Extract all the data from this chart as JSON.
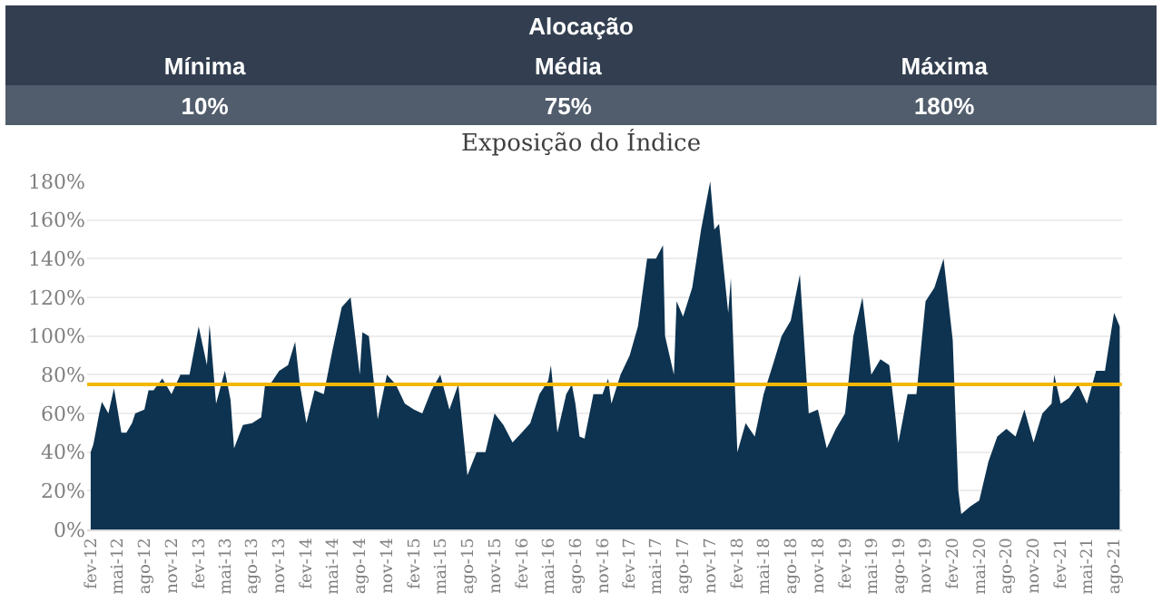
{
  "chart_data": {
    "type": "area",
    "title": "Exposição do Índice",
    "annotations": [
      "Alocação",
      "Mínima",
      "Média",
      "Máxima",
      "10%",
      "75%",
      "180%"
    ],
    "x": [
      "2012-02-01",
      "2012-02-10",
      "2012-03-01",
      "2012-03-10",
      "2012-04-01",
      "2012-04-20",
      "2012-05-01",
      "2012-05-15",
      "2012-06-01",
      "2012-06-20",
      "2012-07-01",
      "2012-08-01",
      "2012-08-15",
      "2012-09-01",
      "2012-10-01",
      "2012-11-01",
      "2012-12-01",
      "2013-01-01",
      "2013-02-01",
      "2013-03-01",
      "2013-03-10",
      "2013-04-01",
      "2013-05-01",
      "2013-05-20",
      "2013-06-01",
      "2013-07-01",
      "2013-08-01",
      "2013-09-01",
      "2013-09-15",
      "2013-10-01",
      "2013-11-01",
      "2013-12-01",
      "2013-12-25",
      "2014-01-10",
      "2014-02-01",
      "2014-03-01",
      "2014-04-01",
      "2014-05-01",
      "2014-06-01",
      "2014-07-01",
      "2014-08-01",
      "2014-08-10",
      "2014-09-01",
      "2014-10-01",
      "2014-11-01",
      "2014-12-01",
      "2015-01-01",
      "2015-02-01",
      "2015-03-01",
      "2015-04-01",
      "2015-05-01",
      "2015-06-01",
      "2015-07-01",
      "2015-08-01",
      "2015-09-01",
      "2015-10-01",
      "2015-11-01",
      "2015-12-01",
      "2016-01-01",
      "2016-02-01",
      "2016-03-01",
      "2016-04-01",
      "2016-05-01",
      "2016-05-10",
      "2016-06-01",
      "2016-07-01",
      "2016-07-20",
      "2016-08-01",
      "2016-08-15",
      "2016-09-01",
      "2016-10-01",
      "2016-11-01",
      "2016-11-20",
      "2016-12-01",
      "2017-01-01",
      "2017-02-01",
      "2017-03-01",
      "2017-04-01",
      "2017-05-01",
      "2017-05-25",
      "2017-06-01",
      "2017-07-01",
      "2017-07-10",
      "2017-08-01",
      "2017-09-01",
      "2017-10-01",
      "2017-11-01",
      "2017-11-15",
      "2017-12-01",
      "2017-12-20",
      "2018-01-01",
      "2018-01-10",
      "2018-02-01",
      "2018-03-01",
      "2018-04-01",
      "2018-05-01",
      "2018-06-01",
      "2018-07-01",
      "2018-08-01",
      "2018-09-01",
      "2018-10-01",
      "2018-11-01",
      "2018-12-01",
      "2019-01-01",
      "2019-02-01",
      "2019-03-01",
      "2019-04-01",
      "2019-05-01",
      "2019-06-01",
      "2019-07-01",
      "2019-08-01",
      "2019-09-01",
      "2019-10-01",
      "2019-11-01",
      "2019-12-01",
      "2020-01-01",
      "2020-02-01",
      "2020-02-20",
      "2020-03-01",
      "2020-04-01",
      "2020-05-01",
      "2020-06-01",
      "2020-07-01",
      "2020-08-01",
      "2020-09-01",
      "2020-10-01",
      "2020-11-01",
      "2020-12-01",
      "2021-01-01",
      "2021-01-10",
      "2021-02-01",
      "2021-03-01",
      "2021-04-01",
      "2021-05-01",
      "2021-06-01",
      "2021-07-01",
      "2021-08-01",
      "2021-08-20"
    ],
    "series": [
      {
        "color": "#0d3350",
        "values": [
          40,
          44,
          60,
          66,
          60,
          73,
          63,
          50,
          50,
          55,
          60,
          62,
          72,
          72,
          78,
          70,
          80,
          80,
          105,
          85,
          106,
          65,
          82,
          67,
          42,
          54,
          55,
          58,
          76,
          75,
          82,
          85,
          97,
          75,
          55,
          72,
          70,
          93,
          115,
          120,
          80,
          102,
          100,
          57,
          80,
          75,
          65,
          62,
          60,
          72,
          80,
          62,
          75,
          28,
          40,
          40,
          60,
          54,
          45,
          50,
          55,
          70,
          77,
          85,
          50,
          70,
          75,
          65,
          48,
          47,
          70,
          70,
          78,
          65,
          80,
          90,
          105,
          140,
          140,
          147,
          100,
          80,
          118,
          110,
          125,
          155,
          180,
          155,
          158,
          130,
          112,
          130,
          40,
          55,
          48,
          70,
          85,
          100,
          108,
          132,
          60,
          62,
          42,
          52,
          60,
          100,
          120,
          80,
          88,
          85,
          45,
          70,
          70,
          118,
          125,
          140,
          98,
          20,
          8,
          12,
          15,
          35,
          48,
          52,
          48,
          62,
          45,
          60,
          65,
          80,
          65,
          68,
          75,
          65,
          82,
          82,
          112,
          105
        ]
      }
    ],
    "ylim": [
      0,
      180
    ],
    "yticks": [
      {
        "value": 0,
        "label": "0%"
      },
      {
        "value": 20,
        "label": "20%"
      },
      {
        "value": 40,
        "label": "40%"
      },
      {
        "value": 60,
        "label": "60%"
      },
      {
        "value": 80,
        "label": "80%"
      },
      {
        "value": 100,
        "label": "100%"
      },
      {
        "value": 120,
        "label": "120%"
      },
      {
        "value": 140,
        "label": "140%"
      },
      {
        "value": 160,
        "label": "160%"
      },
      {
        "value": 180,
        "label": "180%"
      }
    ],
    "xlim": [
      "2012-01-20",
      "2021-08-28"
    ],
    "xticks": [
      {
        "value": "2012-02-01",
        "label": "fev-12"
      },
      {
        "value": "2012-05-01",
        "label": "mai-12"
      },
      {
        "value": "2012-08-01",
        "label": "ago-12"
      },
      {
        "value": "2012-11-01",
        "label": "nov-12"
      },
      {
        "value": "2013-02-01",
        "label": "fev-13"
      },
      {
        "value": "2013-05-01",
        "label": "mai-13"
      },
      {
        "value": "2013-08-01",
        "label": "ago-13"
      },
      {
        "value": "2013-11-01",
        "label": "nov-13"
      },
      {
        "value": "2014-02-01",
        "label": "fev-14"
      },
      {
        "value": "2014-05-01",
        "label": "mai-14"
      },
      {
        "value": "2014-08-01",
        "label": "ago-14"
      },
      {
        "value": "2014-11-01",
        "label": "nov-14"
      },
      {
        "value": "2015-02-01",
        "label": "fev-15"
      },
      {
        "value": "2015-05-01",
        "label": "mai-15"
      },
      {
        "value": "2015-08-01",
        "label": "ago-15"
      },
      {
        "value": "2015-11-01",
        "label": "nov-15"
      },
      {
        "value": "2016-02-01",
        "label": "fev-16"
      },
      {
        "value": "2016-05-01",
        "label": "mai-16"
      },
      {
        "value": "2016-08-01",
        "label": "ago-16"
      },
      {
        "value": "2016-11-01",
        "label": "nov-16"
      },
      {
        "value": "2017-02-01",
        "label": "fev-17"
      },
      {
        "value": "2017-05-01",
        "label": "mai-17"
      },
      {
        "value": "2017-08-01",
        "label": "ago-17"
      },
      {
        "value": "2017-11-01",
        "label": "nov-17"
      },
      {
        "value": "2018-02-01",
        "label": "fev-18"
      },
      {
        "value": "2018-05-01",
        "label": "mai-18"
      },
      {
        "value": "2018-08-01",
        "label": "ago-18"
      },
      {
        "value": "2018-11-01",
        "label": "nov-18"
      },
      {
        "value": "2019-02-01",
        "label": "fev-19"
      },
      {
        "value": "2019-05-01",
        "label": "mai-19"
      },
      {
        "value": "2019-08-01",
        "label": "ago-19"
      },
      {
        "value": "2019-11-01",
        "label": "nov-19"
      },
      {
        "value": "2020-02-01",
        "label": "fev-20"
      },
      {
        "value": "2020-05-01",
        "label": "mai-20"
      },
      {
        "value": "2020-08-01",
        "label": "ago-20"
      },
      {
        "value": "2020-11-01",
        "label": "nov-20"
      },
      {
        "value": "2021-02-01",
        "label": "fev-21"
      },
      {
        "value": "2021-05-01",
        "label": "mai-21"
      },
      {
        "value": "2021-08-01",
        "label": "ago-21"
      }
    ],
    "ref_lines": [
      {
        "axis": "y",
        "value": 75,
        "color": "#f2b800"
      }
    ],
    "grid": "y"
  }
}
